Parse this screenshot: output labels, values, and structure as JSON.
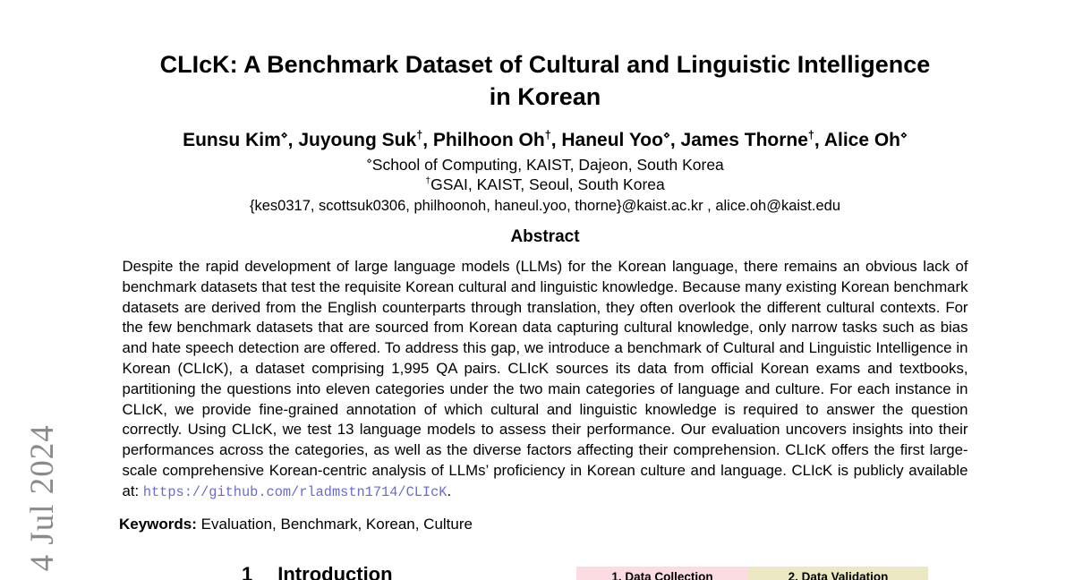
{
  "arxiv_stamp": "] 4 Jul 2024",
  "paper": {
    "title_line1": "CLIcK: A Benchmark Dataset of Cultural and Linguistic Intelligence",
    "title_line2": "in Korean",
    "authors": [
      {
        "name": "Eunsu Kim",
        "mark": "⋄",
        "sep": ", "
      },
      {
        "name": "Juyoung Suk",
        "mark": "†",
        "sep": ", "
      },
      {
        "name": "Philhoon Oh",
        "mark": "†",
        "sep": ", "
      },
      {
        "name": "Haneul Yoo",
        "mark": "⋄",
        "sep": ", "
      },
      {
        "name": "James Thorne",
        "mark": "†",
        "sep": ", "
      },
      {
        "name": "Alice Oh",
        "mark": "⋄",
        "sep": ""
      }
    ],
    "affiliations": [
      {
        "mark": "⋄",
        "text": "School of Computing, KAIST, Dajeon, South Korea"
      },
      {
        "mark": "†",
        "text": "GSAI, KAIST, Seoul, South Korea"
      }
    ],
    "emails": "{kes0317, scottsuk0306, philhoonoh, haneul.yoo, thorne}@kaist.ac.kr , alice.oh@kaist.edu",
    "abstract_heading": "Abstract",
    "abstract_text": "Despite the rapid development of large language models (LLMs) for the Korean language, there remains an obvious lack of benchmark datasets that test the requisite Korean cultural and linguistic knowledge. Because many existing Korean benchmark datasets are derived from the English counterparts through translation, they often overlook the different cultural contexts. For the few benchmark datasets that are sourced from Korean data capturing cultural knowledge, only narrow tasks such as bias and hate speech detection are offered. To address this gap, we introduce a benchmark of Cultural and Linguistic Intelligence in Korean (CLIcK), a dataset comprising 1,995 QA pairs. CLIcK sources its data from official Korean exams and textbooks, partitioning the questions into eleven categories under the two main categories of language and culture. For each instance in CLIcK, we provide fine-grained annotation of which cultural and linguistic knowledge is required to answer the question correctly. Using CLIcK, we test 13 language models to assess their performance. Our evaluation uncovers insights into their performances across the categories, as well as the diverse factors affecting their comprehension. CLIcK offers the first large-scale comprehensive Korean-centric analysis of LLMs’ proficiency in Korean culture and language. CLIcK is publicly available at: ",
    "abstract_url": "https://github.com/rladmstn1714/CLIcK",
    "abstract_url_suffix": ".",
    "keywords_label": "Keywords:",
    "keywords_text": " Evaluation, Benchmark, Korean, Culture",
    "section1_number": "1",
    "section1_title": "Introduction",
    "figure": {
      "step1_label": "1. Data Collection",
      "step2_label": "2. Data Validation",
      "step1_color": "#fbdce3",
      "step2_color": "#ece8c3",
      "url_color": "#6b6bcc"
    }
  }
}
